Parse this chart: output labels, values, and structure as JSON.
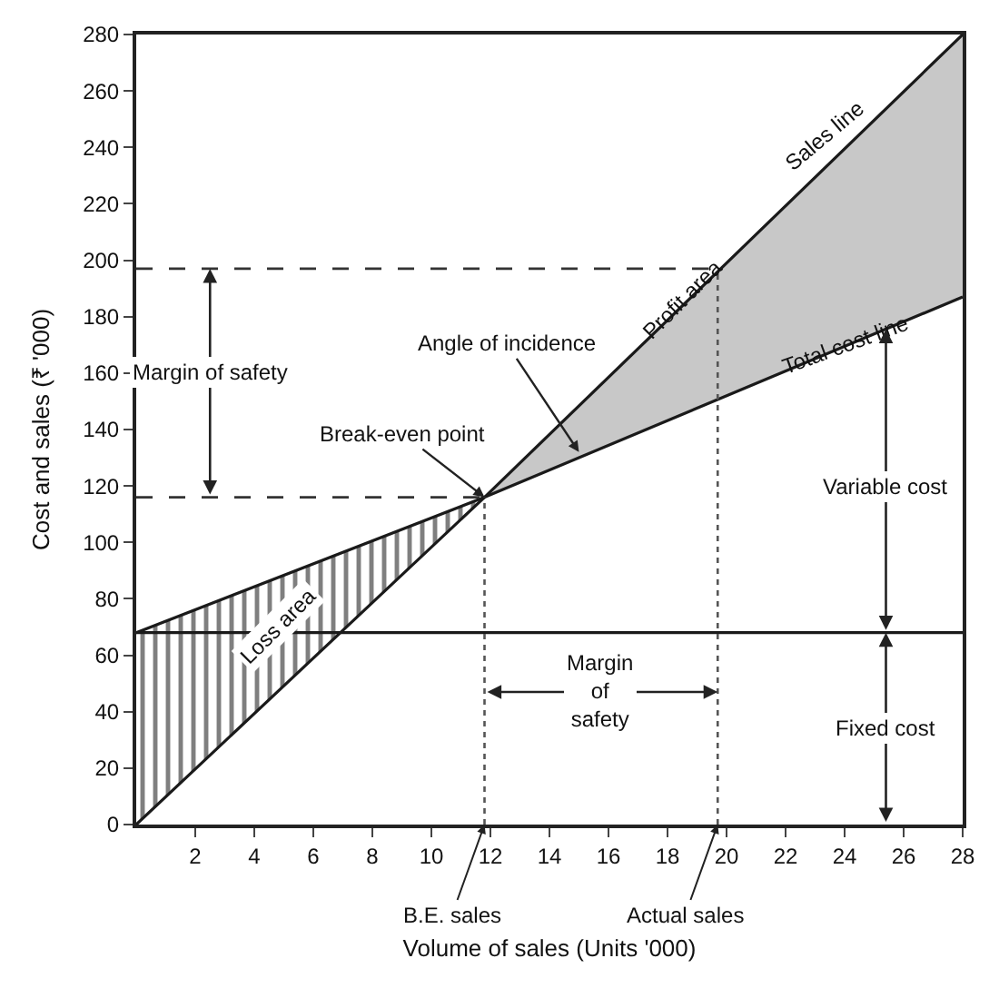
{
  "chart_data": {
    "type": "line",
    "xlabel": "Volume of sales (Units '000)",
    "ylabel": "Cost and sales (₹ '000)",
    "xlim": [
      0,
      28
    ],
    "ylim": [
      0,
      280
    ],
    "xticks": [
      2,
      4,
      6,
      8,
      10,
      12,
      14,
      16,
      18,
      20,
      22,
      24,
      26,
      28
    ],
    "yticks": [
      0,
      20,
      40,
      60,
      80,
      100,
      120,
      140,
      160,
      180,
      200,
      220,
      240,
      260,
      280
    ],
    "marker": "none",
    "series": [
      {
        "x": [
          0,
          11.8,
          28
        ],
        "values": [
          0,
          116,
          280
        ],
        "lower": [
          null,
          116,
          187
        ],
        "upper": [
          null,
          116,
          280
        ],
        "color": "#1a1a1a"
      },
      {
        "x": [
          0,
          11.8,
          28
        ],
        "values": [
          68,
          116,
          187
        ],
        "lower": [
          0,
          116,
          null
        ],
        "upper": [
          68,
          116,
          null
        ],
        "color": "#1a1a1a"
      },
      {
        "x": [
          0,
          28
        ],
        "values": [
          68,
          68
        ],
        "color": "#1a1a1a"
      }
    ],
    "ref_lines": [
      {
        "axis": "y",
        "value": 116,
        "line_style": "dashed",
        "color": "#333333"
      },
      {
        "axis": "y",
        "value": 197,
        "line_style": "dashed",
        "color": "#333333"
      },
      {
        "axis": "x",
        "value": 11.8,
        "line_style": "dotted",
        "color": "#555555"
      },
      {
        "axis": "x",
        "value": 19.7,
        "line_style": "dotted",
        "color": "#555555"
      }
    ],
    "annotations": [
      "Sales line",
      {
        "text": "Total cost line",
        "x": 24,
        "y": 170
      },
      "Profit area",
      {
        "text": "Loss area",
        "x": 4.8,
        "y": 70
      },
      {
        "text": "Break-even point",
        "x": 11.8,
        "y": 116
      },
      {
        "text": "Angle of incidence",
        "x": 15,
        "y": 132
      },
      "Margin of safety",
      "Variable cost",
      "Fixed cost",
      "Margin\nof\nsafety",
      {
        "text": "B.E. sales",
        "x": 11.8,
        "y": 0
      },
      {
        "text": "Actual sales",
        "x": 19.7,
        "y": 0
      }
    ]
  }
}
